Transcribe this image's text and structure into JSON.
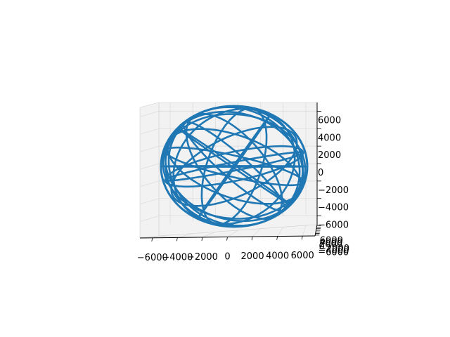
{
  "chart_data": {
    "type": "line",
    "projection": "3d",
    "title": "",
    "xlabel": "",
    "ylabel": "",
    "zlabel": "",
    "grid": true,
    "series_color": "#1f77b4",
    "pane_color": "#f2f2f2",
    "x_ticks": [
      "−6000",
      "−4000",
      "−2000",
      "0",
      "2000",
      "4000",
      "6000"
    ],
    "y_ticks": [
      "−6000",
      "−4000",
      "−2000",
      "0",
      "2000",
      "4000",
      "6000"
    ],
    "z_ticks": [
      "−6000",
      "−4000",
      "−2000",
      "0",
      "2000",
      "4000",
      "6000"
    ],
    "x_tick_values": [
      -6000,
      -4000,
      -2000,
      0,
      2000,
      4000,
      6000
    ],
    "y_tick_values": [
      -6000,
      -4000,
      -2000,
      0,
      2000,
      4000,
      6000
    ],
    "z_tick_values": [
      -6000,
      -4000,
      -2000,
      0,
      2000,
      4000,
      6000
    ],
    "xlim": [
      -7000,
      7000
    ],
    "ylim": [
      -7000,
      7000
    ],
    "zlim": [
      -7000,
      7000
    ],
    "trajectory": {
      "shape": "orbit tracks wrapping a sphere",
      "radius": 6800,
      "orbits": [
        {
          "inclination_deg": 10,
          "node_deg": 0
        },
        {
          "inclination_deg": 25,
          "node_deg": 40
        },
        {
          "inclination_deg": 40,
          "node_deg": 80
        },
        {
          "inclination_deg": 55,
          "node_deg": 120
        },
        {
          "inclination_deg": 70,
          "node_deg": 160
        },
        {
          "inclination_deg": 85,
          "node_deg": 200
        },
        {
          "inclination_deg": 35,
          "node_deg": 240
        },
        {
          "inclination_deg": 60,
          "node_deg": 280
        },
        {
          "inclination_deg": 20,
          "node_deg": 320
        },
        {
          "inclination_deg": 75,
          "node_deg": 20
        },
        {
          "inclination_deg": 45,
          "node_deg": 100
        },
        {
          "inclination_deg": 65,
          "node_deg": 220
        },
        {
          "inclination_deg": 30,
          "node_deg": 140
        },
        {
          "inclination_deg": 80,
          "node_deg": 300
        },
        {
          "inclination_deg": 15,
          "node_deg": 260
        },
        {
          "inclination_deg": 50,
          "node_deg": 180
        }
      ]
    }
  }
}
